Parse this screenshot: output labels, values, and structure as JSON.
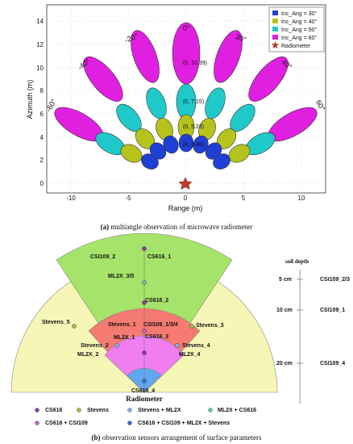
{
  "figure_a": {
    "caption_prefix": "(a)",
    "caption_text": "multiangle observation of microwave radiometer",
    "xlabel": "Range (m)",
    "ylabel": "Azimuth (m)",
    "xticks": [
      "-10",
      "-5",
      "0",
      "5",
      "10"
    ],
    "yticks": [
      "0",
      "2",
      "4",
      "6",
      "8",
      "10",
      "12",
      "14"
    ],
    "angle_labels": [
      "-60°",
      "-40°",
      "-20°",
      "0°",
      "20°",
      "40°",
      "60°"
    ],
    "center_labels": [
      "(0, 10.39)",
      "(0, 7.15)",
      "(0, 5.23)",
      "(0, 3.46)"
    ],
    "legend": [
      "Inc_Ang = 30°",
      "Inc_Ang = 40°",
      "Inc_Ang = 50°",
      "Inc_Ang = 60°",
      "Radiometer"
    ],
    "colors": {
      "inc30": "#1f3fd6",
      "inc40": "#b5c31c",
      "inc50": "#1fc9c9",
      "inc60": "#e11fe0",
      "radiometer": "#c0392b"
    }
  },
  "figure_b": {
    "caption_prefix": "(b)",
    "caption_text": "observation sensors arrangement of surface parameters",
    "radiometer_label": "Radiometer",
    "sensor_labels": {
      "csi109_2": "CSI109_2",
      "cs616_1": "CS616_1",
      "ml2x_3_5": "ML2X_3/5",
      "cs616_2": "CS616_2",
      "stevens_5": "Stevens_5",
      "stevens_3": "Stevens_3",
      "stevens_1": "Stevens_1",
      "csi109_134": "CSI109_1/3/4",
      "ml2x_1": "ML2X_1",
      "cs616_3": "CS616_3",
      "stevens_2": "Stevens_2",
      "stevens_4": "Stevens_4",
      "ml2x_2": "ML2X_2",
      "ml2x_4": "ML2X_4",
      "cs616_4": "CS616_4"
    },
    "depth": {
      "title": "soil depth",
      "rows": [
        {
          "depth": "5 cm",
          "sensor": "CSI109_2/3"
        },
        {
          "depth": "10 cm",
          "sensor": "CSI109_1"
        },
        {
          "depth": "20 cm",
          "sensor": "CSI109_4"
        }
      ]
    },
    "legend_row1": [
      "CS616",
      "Stevens",
      "Stevens + ML2X",
      "ML2X + CS616"
    ],
    "legend_row2": [
      "CS616 + CSI109",
      "CS616 + CSI109 + ML2X + Stevens"
    ],
    "colors": {
      "outer_fan": "#f6f7b6",
      "green_sector": "#a6e36a",
      "red_zone": "#f47a72",
      "pink_zone": "#f07ef0",
      "blue_tip": "#5ea8f0",
      "cs616": "#8a3aa6",
      "stevens": "#a8c63a",
      "stevens_ml2x": "#8fb3e8",
      "ml2x_cs616": "#5fc9b3",
      "cs616_csi109": "#d15fd6",
      "all": "#3f6ad6"
    }
  }
}
